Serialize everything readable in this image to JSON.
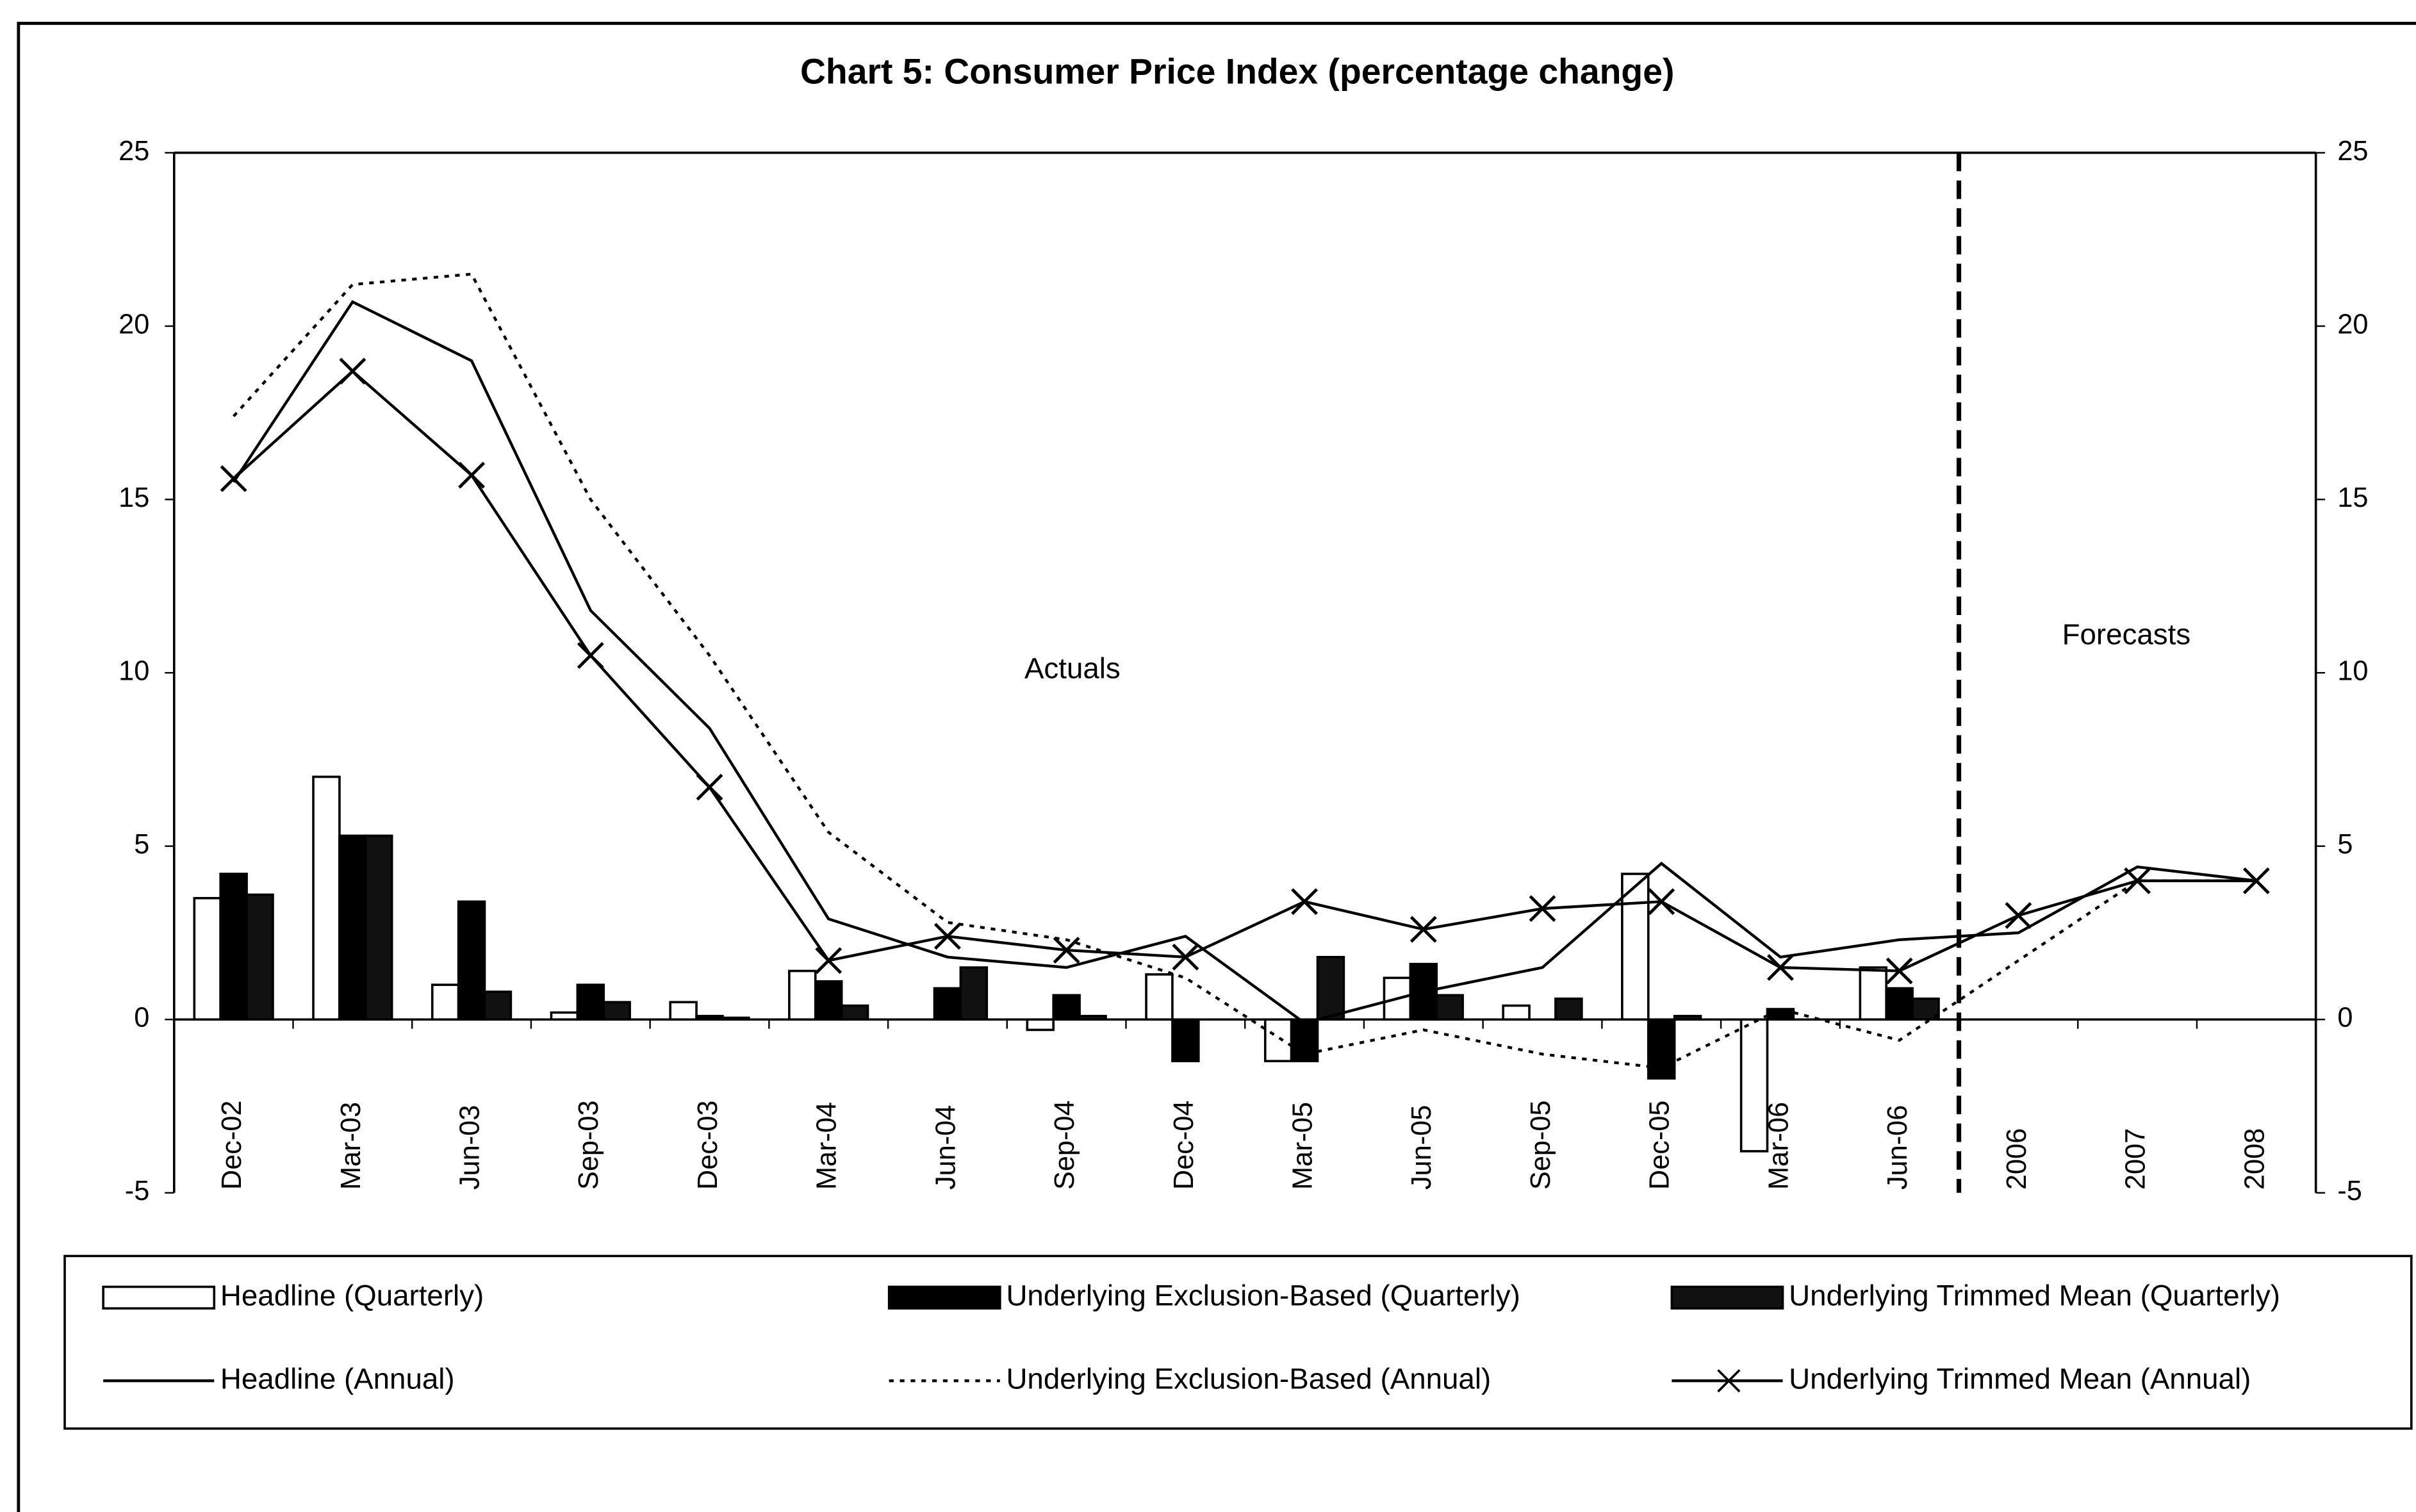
{
  "chart_data": {
    "type": "bar",
    "title": "Chart 5: Consumer Price Index (percentage change)",
    "categories": [
      "Dec-02",
      "Mar-03",
      "Jun-03",
      "Sep-03",
      "Dec-03",
      "Mar-04",
      "Jun-04",
      "Sep-04",
      "Dec-04",
      "Mar-05",
      "Jun-05",
      "Sep-05",
      "Dec-05",
      "Mar-06",
      "Jun-06",
      "2006",
      "2007",
      "2008"
    ],
    "series": [
      {
        "name": "Headline (Quarterly)",
        "kind": "bar",
        "color": "#ffffff",
        "values": [
          3.5,
          7.0,
          1.0,
          0.2,
          0.5,
          1.4,
          0,
          -0.3,
          1.3,
          -1.2,
          1.2,
          0.4,
          4.2,
          -3.8,
          1.5,
          null,
          null,
          null
        ]
      },
      {
        "name": "Underlying Exclusion-Based (Quarterly)",
        "kind": "bar",
        "color": "#000000",
        "values": [
          4.2,
          5.3,
          3.4,
          1.0,
          0.1,
          1.1,
          0.9,
          0.7,
          -1.2,
          -1.2,
          1.6,
          0,
          -1.7,
          0.3,
          0.9,
          null,
          null,
          null
        ]
      },
      {
        "name": "Underlying Trimmed Mean (Quarterly)",
        "kind": "bar",
        "color": "#111111",
        "values": [
          3.6,
          5.3,
          0.8,
          0.5,
          0.05,
          0.4,
          1.5,
          0.1,
          0,
          1.8,
          0.7,
          0.6,
          0.1,
          0,
          0.6,
          null,
          null,
          null
        ]
      },
      {
        "name": "Headline (Annual)",
        "kind": "line",
        "color": "#000000",
        "dash": "none",
        "values": [
          15.5,
          20.7,
          19.0,
          11.8,
          8.4,
          2.9,
          1.8,
          1.5,
          2.4,
          -0.1,
          0.8,
          1.5,
          4.5,
          1.8,
          2.3,
          2.5,
          4.4,
          4.0
        ]
      },
      {
        "name": "Underlying Exclusion-Based (Annual)",
        "kind": "line",
        "color": "#000000",
        "dash": "3,4",
        "values": [
          17.4,
          21.2,
          21.5,
          15.0,
          10.5,
          5.4,
          2.8,
          2.3,
          1.2,
          -1.0,
          -0.3,
          -1.0,
          -1.4,
          0.3,
          -0.6,
          1.7,
          4.0,
          4.0
        ]
      },
      {
        "name": "Underlying Trimmed Mean (Annual)",
        "kind": "line",
        "color": "#000000",
        "dash": "none",
        "marker": "x",
        "values": [
          15.6,
          18.7,
          15.7,
          10.5,
          6.7,
          1.7,
          2.4,
          2.0,
          1.8,
          3.4,
          2.6,
          3.2,
          3.4,
          1.5,
          1.4,
          3.0,
          4.0,
          4.0
        ]
      }
    ],
    "annotations": [
      "Actuals",
      "Forecasts"
    ],
    "ylim": [
      -5,
      25
    ],
    "yticks": [
      -5,
      0,
      5,
      10,
      15,
      20,
      25
    ],
    "y2lim": [
      -5,
      25
    ],
    "y2ticks": [
      -5,
      0,
      5,
      10,
      15,
      20,
      25
    ],
    "grid": false,
    "legend": "bottom"
  }
}
